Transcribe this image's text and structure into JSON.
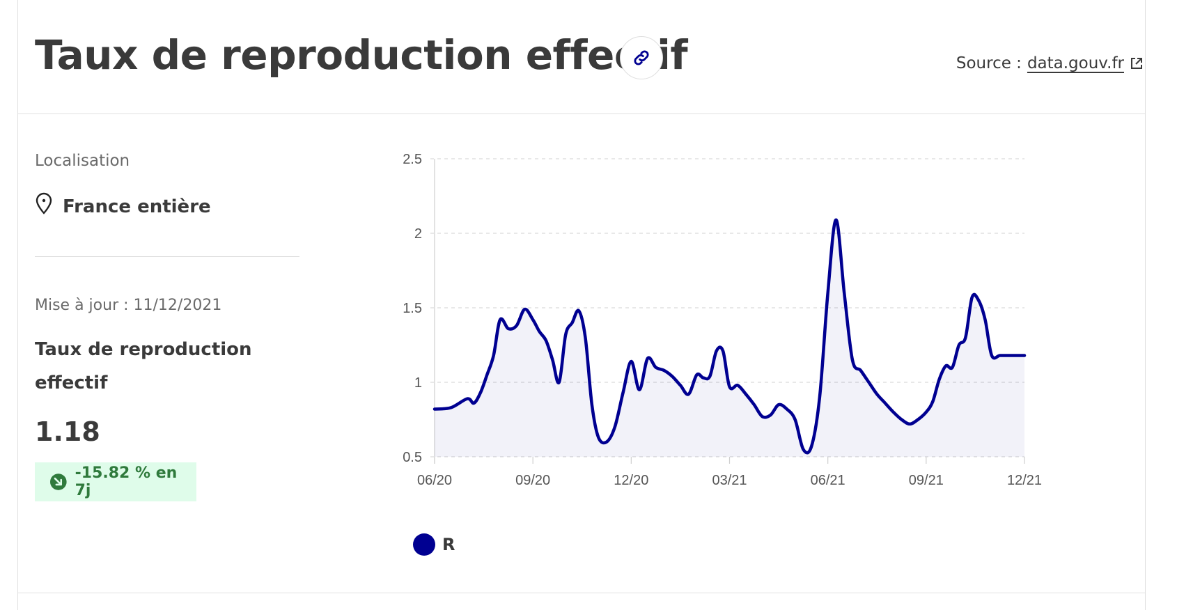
{
  "header": {
    "title": "Taux de reproduction effectif",
    "link_icon": "link-icon",
    "source_prefix": "Source :",
    "source_link": "data.gouv.fr",
    "external_icon": "external-link-icon"
  },
  "sidebar": {
    "location_label": "Localisation",
    "location_icon": "map-pin-icon",
    "location_value": "France entière",
    "updated": "Mise à jour : 11/12/2021",
    "metric_title": "Taux de reproduction effectif",
    "metric_value": "1.18",
    "trend_icon": "arrow-down-right-icon",
    "trend_text": "-15.82 % en 7j"
  },
  "colors": {
    "series": "#000091",
    "trend_bg": "#dffcea",
    "trend_fg": "#2f7a3c"
  },
  "chart_data": {
    "type": "area",
    "title": "",
    "xlabel": "",
    "ylabel": "",
    "x_ticks": [
      "06/20",
      "09/20",
      "12/20",
      "03/21",
      "06/21",
      "09/21",
      "12/21"
    ],
    "y_ticks": [
      "0.5",
      "1",
      "1.5",
      "2",
      "2.5"
    ],
    "ylim": [
      0.5,
      2.5
    ],
    "xlim": [
      "06/20",
      "12/21"
    ],
    "grid": "horizontal-dashed",
    "legend": "bottom-left",
    "series": [
      {
        "name": "R",
        "color": "#000091",
        "x": [
          "06/20",
          "06/20",
          "07/20",
          "07/20",
          "07/20",
          "07/20",
          "07/20",
          "08/20",
          "08/20",
          "08/20",
          "08/20",
          "09/20",
          "09/20",
          "09/20",
          "09/20",
          "09/20",
          "10/20",
          "10/20",
          "10/20",
          "10/20",
          "10/20",
          "11/20",
          "11/20",
          "11/20",
          "11/20",
          "12/20",
          "12/20",
          "12/20",
          "12/20",
          "01/21",
          "01/21",
          "01/21",
          "01/21",
          "02/21",
          "02/21",
          "02/21",
          "02/21",
          "02/21",
          "03/21",
          "03/21",
          "03/21",
          "03/21",
          "04/21",
          "04/21",
          "04/21",
          "04/21",
          "05/21",
          "05/21",
          "05/21",
          "05/21",
          "06/21",
          "06/21",
          "06/21",
          "06/21",
          "07/21",
          "07/21",
          "07/21",
          "07/21",
          "08/21",
          "08/21",
          "08/21",
          "08/21",
          "09/21",
          "09/21",
          "09/21",
          "09/21",
          "09/21",
          "10/21",
          "10/21",
          "10/21",
          "10/21",
          "10/21",
          "11/21",
          "11/21",
          "11/21",
          "11/21",
          "12/21"
        ],
        "values": [
          0.82,
          0.83,
          0.89,
          0.86,
          0.93,
          1.05,
          1.18,
          1.42,
          1.36,
          1.38,
          1.49,
          1.42,
          1.34,
          1.28,
          1.15,
          1.0,
          1.32,
          1.4,
          1.48,
          1.3,
          0.85,
          0.63,
          0.6,
          0.7,
          0.93,
          1.14,
          0.95,
          1.16,
          1.1,
          1.08,
          1.04,
          0.98,
          0.92,
          1.05,
          1.03,
          1.04,
          1.21,
          1.21,
          0.97,
          0.98,
          0.92,
          0.85,
          0.77,
          0.78,
          0.85,
          0.82,
          0.75,
          0.55,
          0.57,
          0.9,
          1.6,
          2.09,
          1.6,
          1.15,
          1.08,
          1.0,
          0.92,
          0.86,
          0.8,
          0.75,
          0.72,
          0.75,
          0.8,
          0.87,
          1.02,
          1.11,
          1.1,
          1.25,
          1.3,
          1.57,
          1.55,
          1.42,
          1.18,
          1.18,
          1.18,
          1.18,
          1.18
        ]
      }
    ]
  }
}
